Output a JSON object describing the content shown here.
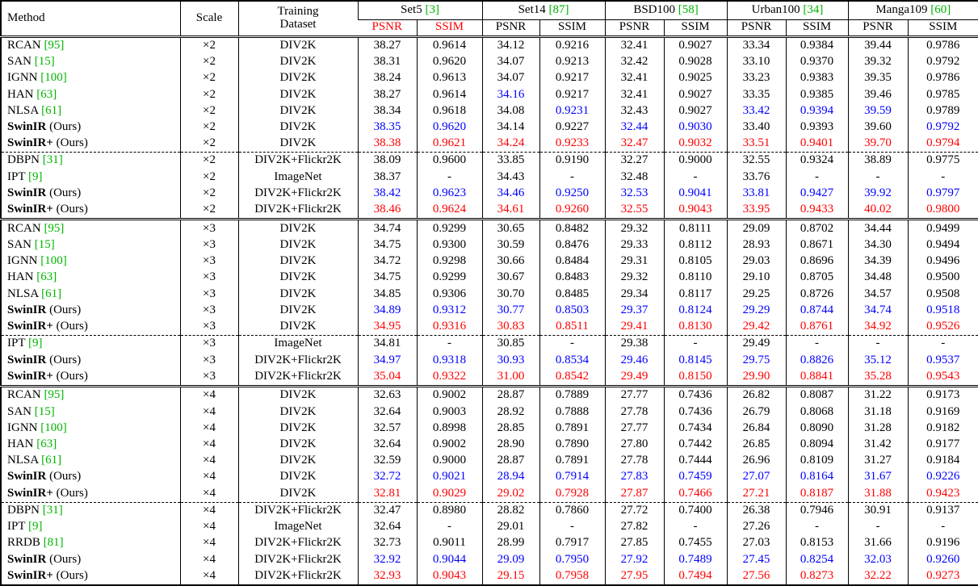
{
  "palette": {
    "black": "#000000",
    "blue": "#0000ff",
    "red": "#ff0000",
    "green": "#00b400"
  },
  "table": {
    "columns": {
      "method": "Method",
      "scale": "Scale",
      "training_line1": "Training",
      "training_line2": "Dataset",
      "psnr": "PSNR",
      "ssim": "SSIM"
    },
    "benchmarks": [
      {
        "name": "Set5",
        "cite": "[3]",
        "sub_color": "red"
      },
      {
        "name": "Set14",
        "cite": "[87]",
        "sub_color": "black"
      },
      {
        "name": "BSD100",
        "cite": "[58]",
        "sub_color": "black"
      },
      {
        "name": "Urban100",
        "cite": "[34]",
        "sub_color": "black"
      },
      {
        "name": "Manga109",
        "cite": "[60]",
        "sub_color": "black"
      }
    ],
    "groups": [
      {
        "scale_label": "×2",
        "blocks": [
          [
            {
              "method": "RCAN",
              "cite": "[95]",
              "bold": false,
              "suffix": "",
              "scale": "×2",
              "dataset": "DIV2K",
              "values": [
                "38.27",
                "0.9614",
                "34.12",
                "0.9216",
                "32.41",
                "0.9027",
                "33.34",
                "0.9384",
                "39.44",
                "0.9786"
              ],
              "colors": "kkkkkkkkkk"
            },
            {
              "method": "SAN",
              "cite": "[15]",
              "bold": false,
              "suffix": "",
              "scale": "×2",
              "dataset": "DIV2K",
              "values": [
                "38.31",
                "0.9620",
                "34.07",
                "0.9213",
                "32.42",
                "0.9028",
                "33.10",
                "0.9370",
                "39.32",
                "0.9792"
              ],
              "colors": "kkkkkkkkkk"
            },
            {
              "method": "IGNN",
              "cite": "[100]",
              "bold": false,
              "suffix": "",
              "scale": "×2",
              "dataset": "DIV2K",
              "values": [
                "38.24",
                "0.9613",
                "34.07",
                "0.9217",
                "32.41",
                "0.9025",
                "33.23",
                "0.9383",
                "39.35",
                "0.9786"
              ],
              "colors": "kkkkkkkkkk"
            },
            {
              "method": "HAN",
              "cite": "[63]",
              "bold": false,
              "suffix": "",
              "scale": "×2",
              "dataset": "DIV2K",
              "values": [
                "38.27",
                "0.9614",
                "34.16",
                "0.9217",
                "32.41",
                "0.9027",
                "33.35",
                "0.9385",
                "39.46",
                "0.9785"
              ],
              "colors": "kkbkkkkkkk"
            },
            {
              "method": "NLSA",
              "cite": "[61]",
              "bold": false,
              "suffix": "",
              "scale": "×2",
              "dataset": "DIV2K",
              "values": [
                "38.34",
                "0.9618",
                "34.08",
                "0.9231",
                "32.43",
                "0.9027",
                "33.42",
                "0.9394",
                "39.59",
                "0.9789"
              ],
              "colors": "kkkbkkbbbk"
            },
            {
              "method": "SwinIR",
              "cite": "",
              "bold": true,
              "suffix": " (Ours)",
              "scale": "×2",
              "dataset": "DIV2K",
              "values": [
                "38.35",
                "0.9620",
                "34.14",
                "0.9227",
                "32.44",
                "0.9030",
                "33.40",
                "0.9393",
                "39.60",
                "0.9792"
              ],
              "colors": "bbkkbbkkkb"
            },
            {
              "method": "SwinIR+",
              "cite": "",
              "bold": true,
              "suffix": " (Ours)",
              "scale": "×2",
              "dataset": "DIV2K",
              "values": [
                "38.38",
                "0.9621",
                "34.24",
                "0.9233",
                "32.47",
                "0.9032",
                "33.51",
                "0.9401",
                "39.70",
                "0.9794"
              ],
              "colors": "rrrrrrrrrr"
            }
          ],
          [
            {
              "method": "DBPN",
              "cite": "[31]",
              "bold": false,
              "suffix": "",
              "scale": "×2",
              "dataset": "DIV2K+Flickr2K",
              "values": [
                "38.09",
                "0.9600",
                "33.85",
                "0.9190",
                "32.27",
                "0.9000",
                "32.55",
                "0.9324",
                "38.89",
                "0.9775"
              ],
              "colors": "kkkkkkkkkk"
            },
            {
              "method": "IPT",
              "cite": "[9]",
              "bold": false,
              "suffix": "",
              "scale": "×2",
              "dataset": "ImageNet",
              "values": [
                "38.37",
                "-",
                "34.43",
                "-",
                "32.48",
                "-",
                "33.76",
                "-",
                "-",
                "-"
              ],
              "colors": "kkkkkkkkkk"
            },
            {
              "method": "SwinIR",
              "cite": "",
              "bold": true,
              "suffix": " (Ours)",
              "scale": "×2",
              "dataset": "DIV2K+Flickr2K",
              "values": [
                "38.42",
                "0.9623",
                "34.46",
                "0.9250",
                "32.53",
                "0.9041",
                "33.81",
                "0.9427",
                "39.92",
                "0.9797"
              ],
              "colors": "bbbbbbbbbb"
            },
            {
              "method": "SwinIR+",
              "cite": "",
              "bold": true,
              "suffix": " (Ours)",
              "scale": "×2",
              "dataset": "DIV2K+Flickr2K",
              "values": [
                "38.46",
                "0.9624",
                "34.61",
                "0.9260",
                "32.55",
                "0.9043",
                "33.95",
                "0.9433",
                "40.02",
                "0.9800"
              ],
              "colors": "rrrrrrrrrr"
            }
          ]
        ]
      },
      {
        "scale_label": "×3",
        "blocks": [
          [
            {
              "method": "RCAN",
              "cite": "[95]",
              "bold": false,
              "suffix": "",
              "scale": "×3",
              "dataset": "DIV2K",
              "values": [
                "34.74",
                "0.9299",
                "30.65",
                "0.8482",
                "29.32",
                "0.8111",
                "29.09",
                "0.8702",
                "34.44",
                "0.9499"
              ],
              "colors": "kkkkkkkkkk"
            },
            {
              "method": "SAN",
              "cite": "[15]",
              "bold": false,
              "suffix": "",
              "scale": "×3",
              "dataset": "DIV2K",
              "values": [
                "34.75",
                "0.9300",
                "30.59",
                "0.8476",
                "29.33",
                "0.8112",
                "28.93",
                "0.8671",
                "34.30",
                "0.9494"
              ],
              "colors": "kkkkkkkkkk"
            },
            {
              "method": "IGNN",
              "cite": "[100]",
              "bold": false,
              "suffix": "",
              "scale": "×3",
              "dataset": "DIV2K",
              "values": [
                "34.72",
                "0.9298",
                "30.66",
                "0.8484",
                "29.31",
                "0.8105",
                "29.03",
                "0.8696",
                "34.39",
                "0.9496"
              ],
              "colors": "kkkkkkkkkk"
            },
            {
              "method": "HAN",
              "cite": "[63]",
              "bold": false,
              "suffix": "",
              "scale": "×3",
              "dataset": "DIV2K",
              "values": [
                "34.75",
                "0.9299",
                "30.67",
                "0.8483",
                "29.32",
                "0.8110",
                "29.10",
                "0.8705",
                "34.48",
                "0.9500"
              ],
              "colors": "kkkkkkkkkk"
            },
            {
              "method": "NLSA",
              "cite": "[61]",
              "bold": false,
              "suffix": "",
              "scale": "×3",
              "dataset": "DIV2K",
              "values": [
                "34.85",
                "0.9306",
                "30.70",
                "0.8485",
                "29.34",
                "0.8117",
                "29.25",
                "0.8726",
                "34.57",
                "0.9508"
              ],
              "colors": "kkkkkkkkkk"
            },
            {
              "method": "SwinIR",
              "cite": "",
              "bold": true,
              "suffix": " (Ours)",
              "scale": "×3",
              "dataset": "DIV2K",
              "values": [
                "34.89",
                "0.9312",
                "30.77",
                "0.8503",
                "29.37",
                "0.8124",
                "29.29",
                "0.8744",
                "34.74",
                "0.9518"
              ],
              "colors": "bbbbbbbbbb"
            },
            {
              "method": "SwinIR+",
              "cite": "",
              "bold": true,
              "suffix": " (Ours)",
              "scale": "×3",
              "dataset": "DIV2K",
              "values": [
                "34.95",
                "0.9316",
                "30.83",
                "0.8511",
                "29.41",
                "0.8130",
                "29.42",
                "0.8761",
                "34.92",
                "0.9526"
              ],
              "colors": "rrrrrrrrrr"
            }
          ],
          [
            {
              "method": "IPT",
              "cite": "[9]",
              "bold": false,
              "suffix": "",
              "scale": "×3",
              "dataset": "ImageNet",
              "values": [
                "34.81",
                "-",
                "30.85",
                "-",
                "29.38",
                "-",
                "29.49",
                "-",
                "-",
                "-"
              ],
              "colors": "kkkkkkkkkk"
            },
            {
              "method": "SwinIR",
              "cite": "",
              "bold": true,
              "suffix": " (Ours)",
              "scale": "×3",
              "dataset": "DIV2K+Flickr2K",
              "values": [
                "34.97",
                "0.9318",
                "30.93",
                "0.8534",
                "29.46",
                "0.8145",
                "29.75",
                "0.8826",
                "35.12",
                "0.9537"
              ],
              "colors": "bbbbbbbbbb"
            },
            {
              "method": "SwinIR+",
              "cite": "",
              "bold": true,
              "suffix": " (Ours)",
              "scale": "×3",
              "dataset": "DIV2K+Flickr2K",
              "values": [
                "35.04",
                "0.9322",
                "31.00",
                "0.8542",
                "29.49",
                "0.8150",
                "29.90",
                "0.8841",
                "35.28",
                "0.9543"
              ],
              "colors": "rrrrrrrrrr"
            }
          ]
        ]
      },
      {
        "scale_label": "×4",
        "blocks": [
          [
            {
              "method": "RCAN",
              "cite": "[95]",
              "bold": false,
              "suffix": "",
              "scale": "×4",
              "dataset": "DIV2K",
              "values": [
                "32.63",
                "0.9002",
                "28.87",
                "0.7889",
                "27.77",
                "0.7436",
                "26.82",
                "0.8087",
                "31.22",
                "0.9173"
              ],
              "colors": "kkkkkkkkkk"
            },
            {
              "method": "SAN",
              "cite": "[15]",
              "bold": false,
              "suffix": "",
              "scale": "×4",
              "dataset": "DIV2K",
              "values": [
                "32.64",
                "0.9003",
                "28.92",
                "0.7888",
                "27.78",
                "0.7436",
                "26.79",
                "0.8068",
                "31.18",
                "0.9169"
              ],
              "colors": "kkkkkkkkkk"
            },
            {
              "method": "IGNN",
              "cite": "[100]",
              "bold": false,
              "suffix": "",
              "scale": "×4",
              "dataset": "DIV2K",
              "values": [
                "32.57",
                "0.8998",
                "28.85",
                "0.7891",
                "27.77",
                "0.7434",
                "26.84",
                "0.8090",
                "31.28",
                "0.9182"
              ],
              "colors": "kkkkkkkkkk"
            },
            {
              "method": "HAN",
              "cite": "[63]",
              "bold": false,
              "suffix": "",
              "scale": "×4",
              "dataset": "DIV2K",
              "values": [
                "32.64",
                "0.9002",
                "28.90",
                "0.7890",
                "27.80",
                "0.7442",
                "26.85",
                "0.8094",
                "31.42",
                "0.9177"
              ],
              "colors": "kkkkkkkkkk"
            },
            {
              "method": "NLSA",
              "cite": "[61]",
              "bold": false,
              "suffix": "",
              "scale": "×4",
              "dataset": "DIV2K",
              "values": [
                "32.59",
                "0.9000",
                "28.87",
                "0.7891",
                "27.78",
                "0.7444",
                "26.96",
                "0.8109",
                "31.27",
                "0.9184"
              ],
              "colors": "kkkkkkkkkk"
            },
            {
              "method": "SwinIR",
              "cite": "",
              "bold": true,
              "suffix": " (Ours)",
              "scale": "×4",
              "dataset": "DIV2K",
              "values": [
                "32.72",
                "0.9021",
                "28.94",
                "0.7914",
                "27.83",
                "0.7459",
                "27.07",
                "0.8164",
                "31.67",
                "0.9226"
              ],
              "colors": "bbbbbbbbbb"
            },
            {
              "method": "SwinIR+",
              "cite": "",
              "bold": true,
              "suffix": " (Ours)",
              "scale": "×4",
              "dataset": "DIV2K",
              "values": [
                "32.81",
                "0.9029",
                "29.02",
                "0.7928",
                "27.87",
                "0.7466",
                "27.21",
                "0.8187",
                "31.88",
                "0.9423"
              ],
              "colors": "rrrrrrrrrr"
            }
          ],
          [
            {
              "method": "DBPN",
              "cite": "[31]",
              "bold": false,
              "suffix": "",
              "scale": "×4",
              "dataset": "DIV2K+Flickr2K",
              "values": [
                "32.47",
                "0.8980",
                "28.82",
                "0.7860",
                "27.72",
                "0.7400",
                "26.38",
                "0.7946",
                "30.91",
                "0.9137"
              ],
              "colors": "kkkkkkkkkk"
            },
            {
              "method": "IPT",
              "cite": "[9]",
              "bold": false,
              "suffix": "",
              "scale": "×4",
              "dataset": "ImageNet",
              "values": [
                "32.64",
                "-",
                "29.01",
                "-",
                "27.82",
                "-",
                "27.26",
                "-",
                "-",
                "-"
              ],
              "colors": "kkkkkkkkkk"
            },
            {
              "method": "RRDB",
              "cite": "[81]",
              "bold": false,
              "suffix": "",
              "scale": "×4",
              "dataset": "DIV2K+Flickr2K",
              "values": [
                "32.73",
                "0.9011",
                "28.99",
                "0.7917",
                "27.85",
                "0.7455",
                "27.03",
                "0.8153",
                "31.66",
                "0.9196"
              ],
              "colors": "kkkkkkkkkk"
            },
            {
              "method": "SwinIR",
              "cite": "",
              "bold": true,
              "suffix": " (Ours)",
              "scale": "×4",
              "dataset": "DIV2K+Flickr2K",
              "values": [
                "32.92",
                "0.9044",
                "29.09",
                "0.7950",
                "27.92",
                "0.7489",
                "27.45",
                "0.8254",
                "32.03",
                "0.9260"
              ],
              "colors": "bbbbbbbbbb"
            },
            {
              "method": "SwinIR+",
              "cite": "",
              "bold": true,
              "suffix": " (Ours)",
              "scale": "×4",
              "dataset": "DIV2K+Flickr2K",
              "values": [
                "32.93",
                "0.9043",
                "29.15",
                "0.7958",
                "27.95",
                "0.7494",
                "27.56",
                "0.8273",
                "32.22",
                "0.9273"
              ],
              "colors": "rrrrrrrrrr"
            }
          ]
        ]
      }
    ]
  }
}
